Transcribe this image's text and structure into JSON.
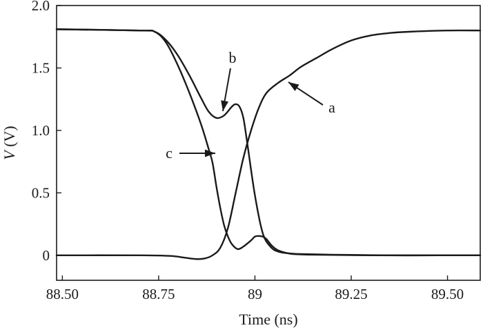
{
  "chart_data": {
    "type": "line",
    "title": "",
    "xlabel": "Time (ns)",
    "ylabel": {
      "symbol": "V",
      "unit": "(V)"
    },
    "xlim": [
      88.485,
      89.585
    ],
    "ylim": [
      -0.2,
      2.0
    ],
    "xticks": [
      88.5,
      88.75,
      89.0,
      89.25,
      89.5
    ],
    "xtick_labels": [
      "88.50",
      "88.75",
      "89",
      "89.25",
      "89.50"
    ],
    "yticks": [
      0,
      0.5,
      1.0,
      1.5,
      2.0
    ],
    "ytick_labels": [
      "0",
      "0.5",
      "1.0",
      "1.5",
      "2.0"
    ],
    "grid": false,
    "legend": "none",
    "color": "#1a1a1a",
    "series": [
      {
        "label": "a",
        "x": [
          88.485,
          88.7,
          88.78,
          88.82,
          88.85,
          88.87,
          88.89,
          88.91,
          88.93,
          88.95,
          88.97,
          88.99,
          89.01,
          89.03,
          89.06,
          89.09,
          89.12,
          89.16,
          89.2,
          89.25,
          89.3,
          89.35,
          89.4,
          89.5,
          89.585
        ],
        "y": [
          0.0,
          0.0,
          -0.005,
          -0.02,
          -0.03,
          -0.025,
          0.0,
          0.06,
          0.22,
          0.5,
          0.78,
          1.0,
          1.18,
          1.3,
          1.38,
          1.44,
          1.51,
          1.58,
          1.65,
          1.72,
          1.76,
          1.78,
          1.79,
          1.8,
          1.8
        ]
      },
      {
        "label": "b",
        "x": [
          88.485,
          88.7,
          88.74,
          88.77,
          88.8,
          88.83,
          88.86,
          88.88,
          88.9,
          88.92,
          88.94,
          88.95,
          88.96,
          88.97,
          88.98,
          89.0,
          89.02,
          89.04,
          89.06,
          89.09,
          89.12,
          89.2,
          89.35,
          89.5,
          89.585
        ],
        "y": [
          1.81,
          1.8,
          1.79,
          1.72,
          1.6,
          1.44,
          1.26,
          1.15,
          1.1,
          1.12,
          1.19,
          1.21,
          1.19,
          1.1,
          0.9,
          0.48,
          0.18,
          0.07,
          0.03,
          0.015,
          0.01,
          0.005,
          0.0,
          0.0,
          0.0
        ]
      },
      {
        "label": "c",
        "x": [
          88.485,
          88.7,
          88.74,
          88.77,
          88.8,
          88.83,
          88.86,
          88.88,
          88.89,
          88.9,
          88.91,
          88.92,
          88.93,
          88.94,
          88.955,
          88.97,
          88.99,
          89.0,
          89.01,
          89.02,
          89.03,
          89.04,
          89.05,
          89.06,
          89.08,
          89.1,
          89.15,
          89.3,
          89.5,
          89.585
        ],
        "y": [
          1.81,
          1.8,
          1.79,
          1.7,
          1.52,
          1.3,
          1.05,
          0.85,
          0.74,
          0.55,
          0.38,
          0.24,
          0.15,
          0.09,
          0.05,
          0.07,
          0.12,
          0.15,
          0.155,
          0.15,
          0.13,
          0.09,
          0.06,
          0.04,
          0.02,
          0.01,
          0.005,
          0.0,
          0.0,
          0.0
        ]
      }
    ],
    "annotations": [
      {
        "text": "a",
        "target_series": "a"
      },
      {
        "text": "b",
        "target_series": "b"
      },
      {
        "text": "c",
        "target_series": "c"
      }
    ]
  }
}
